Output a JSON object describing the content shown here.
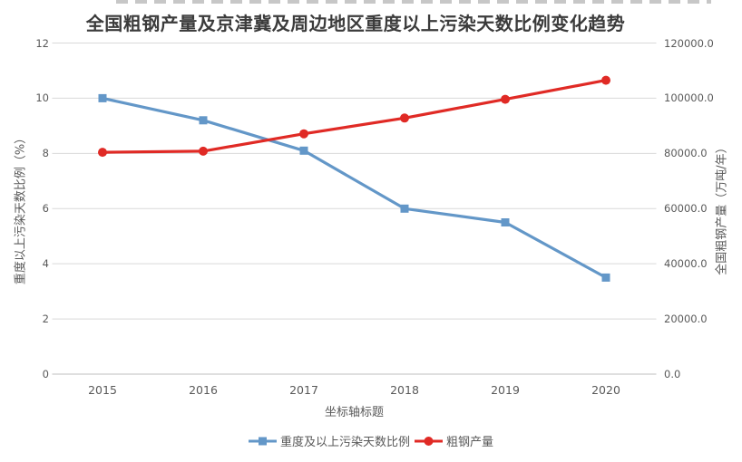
{
  "chart": {
    "title": "全国粗钢产量及京津冀及周边地区重度以上污染天数比例变化趋势",
    "colors": {
      "pollution_series": "#6397c8",
      "steel_series": "#e02a25",
      "grid": "#d9d9d9",
      "axis_line": "#bfbfbf",
      "tick_text": "#595959",
      "title_text": "#3b3b3b"
    }
  },
  "chart_data": {
    "type": "line",
    "title": "全国粗钢产量及京津冀及周边地区重度以上污染天数比例变化趋势",
    "categories": [
      "2015",
      "2016",
      "2017",
      "2018",
      "2019",
      "2020"
    ],
    "series": [
      {
        "name": "重度及以上污染天数比例",
        "axis": "left",
        "marker": "square",
        "color": "#6397c8",
        "values": [
          10.0,
          9.2,
          8.1,
          6.0,
          5.5,
          3.5
        ]
      },
      {
        "name": "粗钢产量",
        "axis": "right",
        "marker": "circle",
        "color": "#e02a25",
        "values": [
          80400,
          80800,
          87100,
          92800,
          99600,
          106500
        ]
      }
    ],
    "x_axis": {
      "label": "坐标轴标题",
      "tick_labels": [
        "2015",
        "2016",
        "2017",
        "2018",
        "2019",
        "2020"
      ]
    },
    "left_axis": {
      "label": "重度以上污染天数比例（%）",
      "min": 0,
      "max": 12,
      "step": 2,
      "tick_labels": [
        "0",
        "2",
        "4",
        "6",
        "8",
        "10",
        "12"
      ]
    },
    "right_axis": {
      "label": "全国粗钢产量（万吨/年）",
      "min": 0,
      "max": 120000,
      "step": 20000,
      "tick_labels": [
        "0.0",
        "20000.0",
        "40000.0",
        "60000.0",
        "80000.0",
        "100000.0",
        "120000.0"
      ]
    },
    "legend_position": "bottom",
    "grid": true
  }
}
